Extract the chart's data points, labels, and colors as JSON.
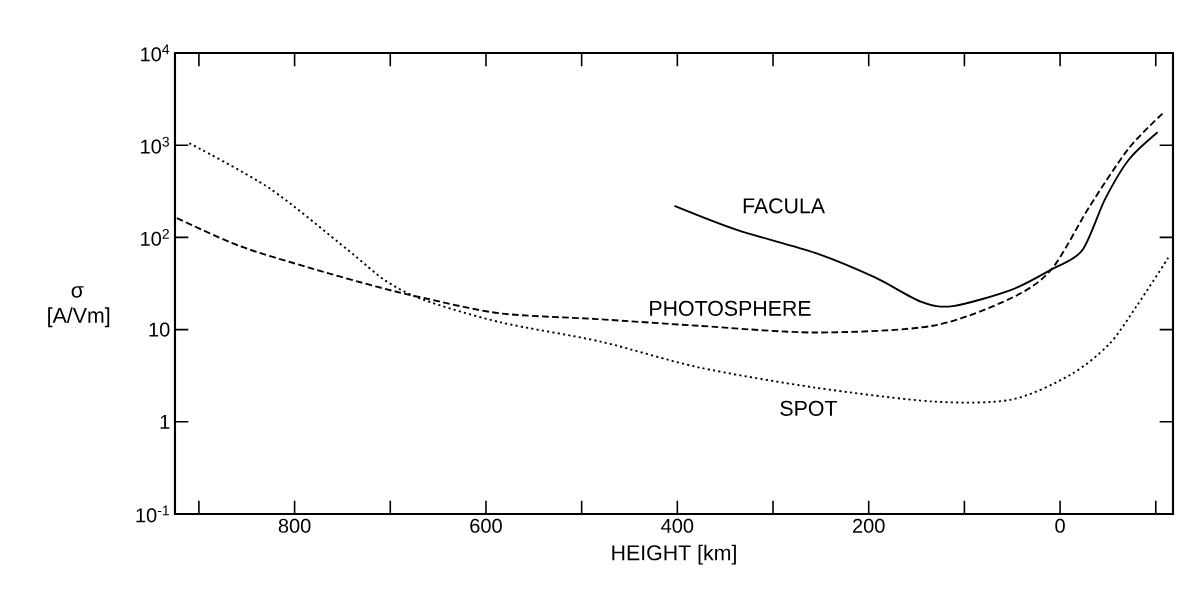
{
  "chart_data": {
    "type": "line",
    "xlabel": "HEIGHT [km]",
    "ylabel": "σ [A/Vm]",
    "log": "y",
    "grid": false,
    "legend": false,
    "xlim": [
      925,
      -118
    ],
    "ylim": [
      0.1,
      10000
    ],
    "xticks": [
      {
        "value": 900,
        "label": null
      },
      800,
      {
        "value": 700,
        "label": null
      },
      600,
      {
        "value": 500,
        "label": null
      },
      400,
      {
        "value": 300,
        "label": null
      },
      200,
      {
        "value": 100,
        "label": null
      },
      0,
      {
        "value": -100,
        "label": null
      }
    ],
    "yticks": [
      {
        "value": 0.1,
        "label": "10$^{-1}$"
      },
      1,
      10,
      {
        "value": 100,
        "label": "10$^{2}$"
      },
      {
        "value": 1000,
        "label": "10$^{3}$"
      },
      {
        "value": 10000,
        "label": "10$^{4}$"
      }
    ],
    "series": [
      {
        "name": "FACULA",
        "color": "#000000",
        "line_style": "solid",
        "x": [
          403,
          337,
          256,
          194,
          145,
          112,
          51,
          9,
          -23,
          -47,
          -72,
          -102
        ],
        "values": [
          220,
          120,
          68,
          37,
          20,
          18,
          27,
          45,
          72,
          260,
          700,
          1380
        ]
      },
      {
        "name": "PHOTOSPHERE",
        "color": "#000000",
        "line_style": "dashed",
        "x": [
          923,
          858,
          785,
          713,
          665,
          585,
          484,
          378,
          256,
          133,
          51,
          9,
          -31,
          -72,
          -109
        ],
        "values": [
          162,
          81,
          47,
          29,
          22,
          15,
          13,
          11,
          9.3,
          11,
          22,
          45,
          218,
          930,
          2300
        ]
      },
      {
        "name": "SPOT",
        "color": "#000000",
        "line_style": "dotted",
        "x": [
          910,
          826,
          745,
          705,
          665,
          585,
          480,
          378,
          256,
          133,
          51,
          -10,
          -51,
          -80,
          -113
        ],
        "values": [
          1050,
          340,
          74,
          34,
          21,
          12,
          7.4,
          3.9,
          2.35,
          1.66,
          1.74,
          3.2,
          6.9,
          18,
          60
        ]
      }
    ]
  }
}
